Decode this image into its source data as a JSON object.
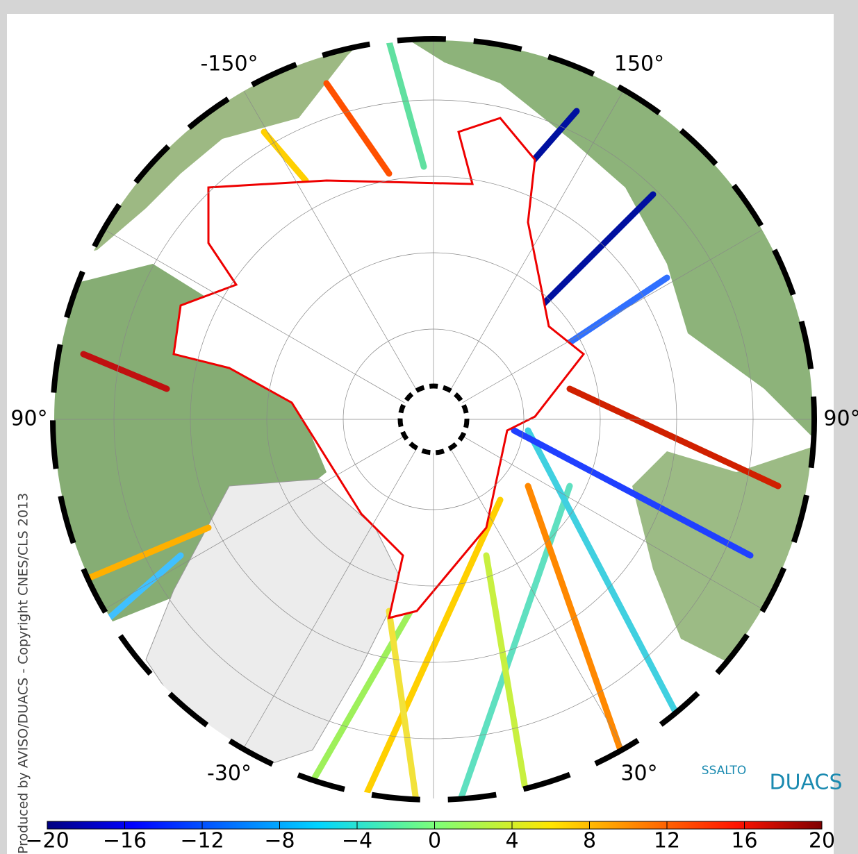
{
  "map": {
    "longitude_labels": [
      "-150°",
      "150°",
      "90°",
      "90°",
      "-30°",
      "30°"
    ],
    "credit": "Produced by AVISO/DUACS - Copyright CNES/CLS 2013",
    "logo": [
      "SSALTO",
      "DUACS"
    ]
  },
  "colorbar": {
    "clim": [
      -20,
      20
    ],
    "ticks": [
      {
        "value": -20,
        "label": "−20"
      },
      {
        "value": -16,
        "label": "−16"
      },
      {
        "value": -12,
        "label": "−12"
      },
      {
        "value": -8,
        "label": "−8"
      },
      {
        "value": -4,
        "label": "−4"
      },
      0,
      4,
      8,
      12,
      16,
      20
    ]
  }
}
